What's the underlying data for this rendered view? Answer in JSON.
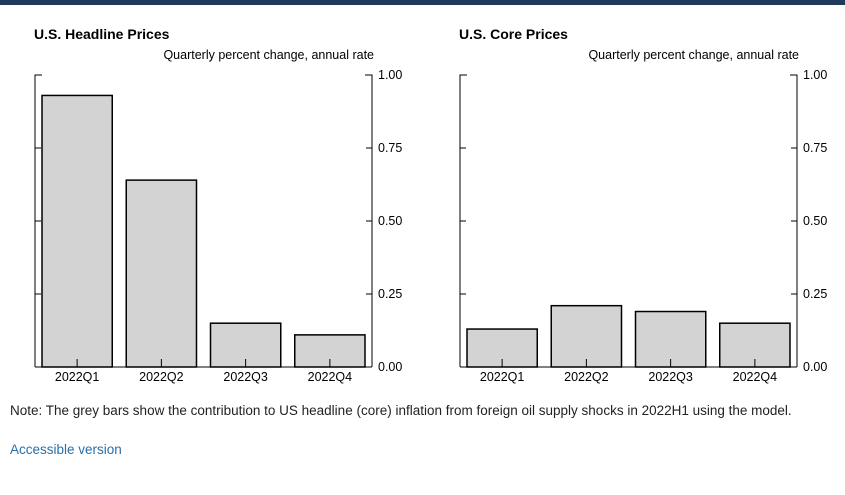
{
  "colors": {
    "bar_fill": "#d3d3d3",
    "bar_stroke": "#000000",
    "link": "#2a6ea6",
    "top_bar": "#1f3a5a"
  },
  "chart_data": [
    {
      "type": "bar",
      "title": "U.S. Headline Prices",
      "subtitle": "Quarterly percent change, annual rate",
      "categories": [
        "2022Q1",
        "2022Q2",
        "2022Q3",
        "2022Q4"
      ],
      "values": [
        0.93,
        0.64,
        0.15,
        0.11
      ],
      "ylim": [
        0,
        1.0
      ],
      "yticks": [
        "0.00",
        "0.25",
        "0.50",
        "0.75",
        "1.00"
      ],
      "yaxis_side": "right",
      "grid": false
    },
    {
      "type": "bar",
      "title": "U.S. Core Prices",
      "subtitle": "Quarterly percent change, annual rate",
      "categories": [
        "2022Q1",
        "2022Q2",
        "2022Q3",
        "2022Q4"
      ],
      "values": [
        0.13,
        0.21,
        0.19,
        0.15
      ],
      "ylim": [
        0,
        1.0
      ],
      "yticks": [
        "0.00",
        "0.25",
        "0.50",
        "0.75",
        "1.00"
      ],
      "yaxis_side": "right",
      "grid": false
    }
  ],
  "note": "Note: The grey bars show the contribution to US headline (core) inflation from foreign oil supply shocks in 2022H1 using the model.",
  "accessible_link": "Accessible version"
}
